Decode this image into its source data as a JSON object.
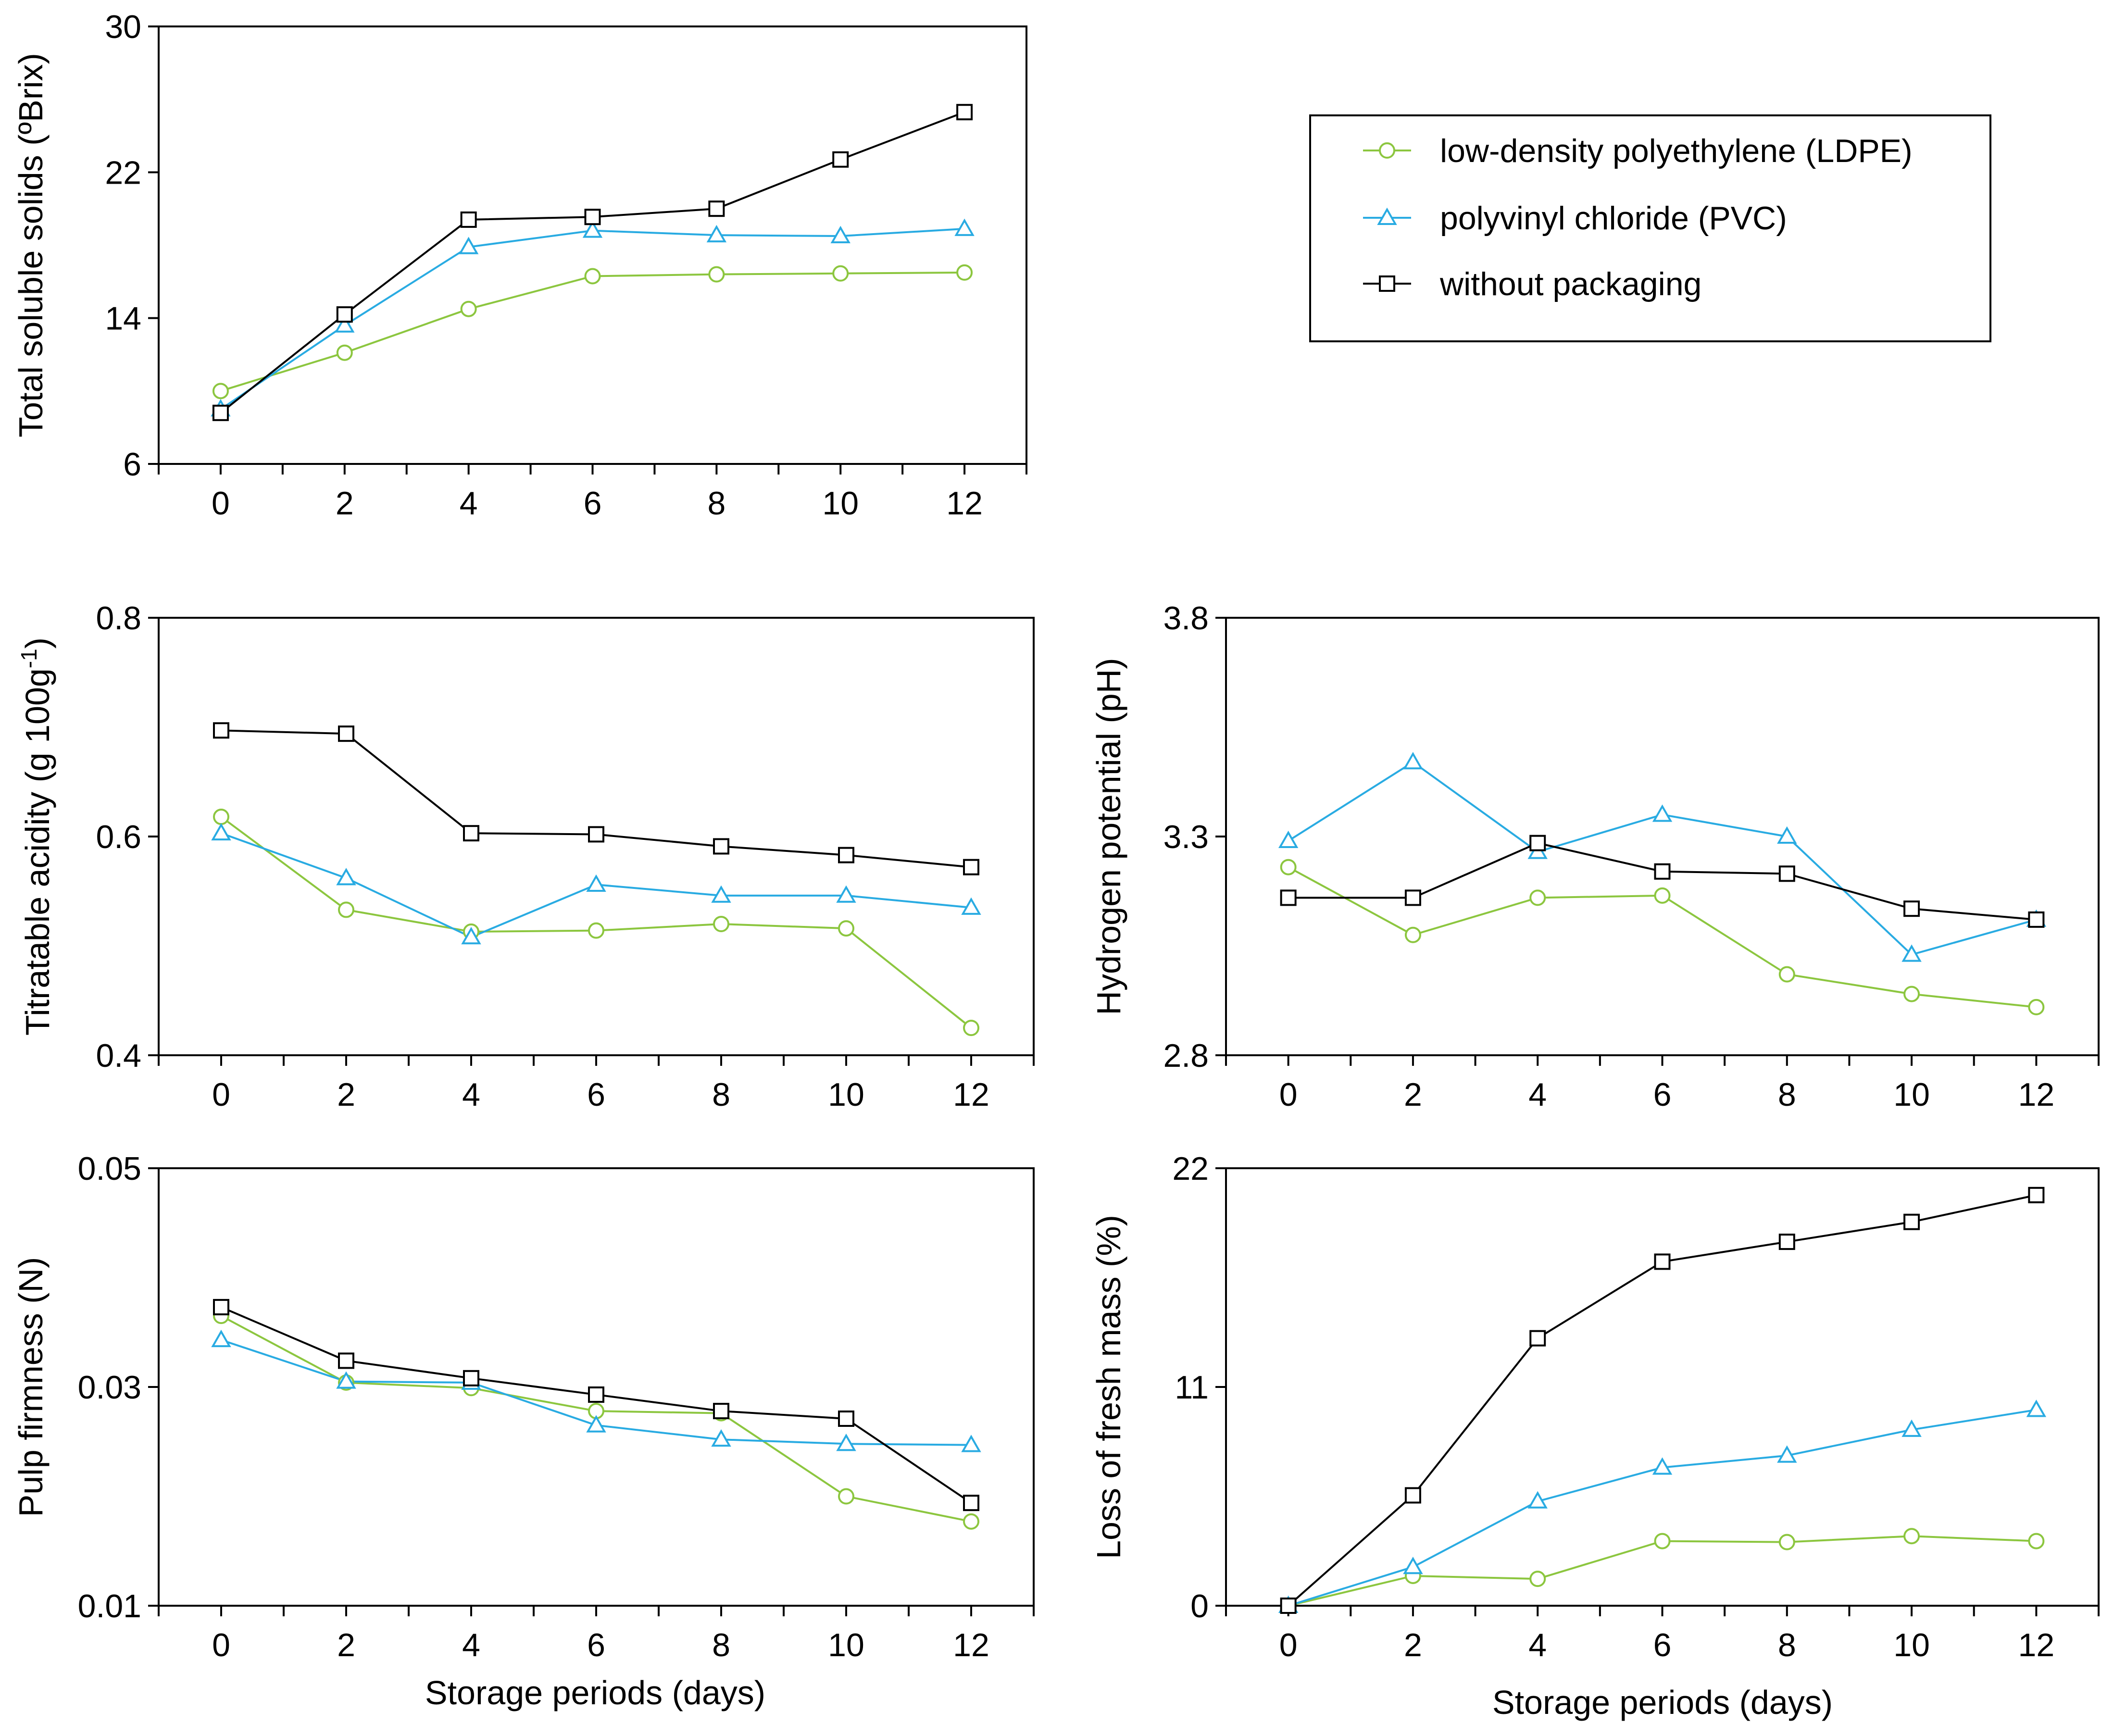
{
  "legend": {
    "entries": [
      {
        "label": "low-density polyethylene (LDPE)",
        "color": "#8cc63f",
        "marker": "circle"
      },
      {
        "label": "polyvinyl chloride (PVC)",
        "color": "#29abe2",
        "marker": "triangle"
      },
      {
        "label": "without packaging",
        "color": "#000000",
        "marker": "square"
      }
    ]
  },
  "chart_data": [
    {
      "type": "line",
      "id": "tss",
      "title": "",
      "xlabel": "",
      "ylabel": "Total soluble solids (ºBrix)",
      "x": [
        0,
        2,
        4,
        6,
        8,
        10,
        12
      ],
      "xticks": [
        "0",
        "2",
        "4",
        "6",
        "8",
        "10",
        "12"
      ],
      "ylim": [
        6,
        30
      ],
      "yticks": [
        "6",
        "14",
        "22",
        "30"
      ],
      "series": [
        {
          "name": "low-density polyethylene (LDPE)",
          "values": [
            10.0,
            12.1,
            14.5,
            16.3,
            16.4,
            16.45,
            16.5
          ]
        },
        {
          "name": "polyvinyl chloride (PVC)",
          "values": [
            9.0,
            13.6,
            17.9,
            18.8,
            18.55,
            18.5,
            18.9
          ]
        },
        {
          "name": "without packaging",
          "values": [
            8.8,
            14.2,
            19.4,
            19.55,
            20.0,
            22.7,
            25.3
          ]
        }
      ]
    },
    {
      "type": "line",
      "id": "ta",
      "title": "",
      "xlabel": "",
      "ylabel": "Titratable acidity (g 100g",
      "ylabel_sup": "-1",
      "ylabel_end": ")",
      "x": [
        0,
        2,
        4,
        6,
        8,
        10,
        12
      ],
      "xticks": [
        "0",
        "2",
        "4",
        "6",
        "8",
        "10",
        "12"
      ],
      "ylim": [
        0.4,
        0.8
      ],
      "yticks": [
        "0.4",
        "0.6",
        "0.8"
      ],
      "series": [
        {
          "name": "low-density polyethylene (LDPE)",
          "values": [
            0.618,
            0.533,
            0.513,
            0.514,
            0.52,
            0.516,
            0.425
          ]
        },
        {
          "name": "polyvinyl chloride (PVC)",
          "values": [
            0.603,
            0.562,
            0.508,
            0.556,
            0.546,
            0.546,
            0.535
          ]
        },
        {
          "name": "without packaging",
          "values": [
            0.697,
            0.694,
            0.603,
            0.602,
            0.591,
            0.583,
            0.572
          ]
        }
      ]
    },
    {
      "type": "line",
      "id": "ph",
      "title": "",
      "xlabel": "",
      "ylabel": "Hydrogen potential (pH)",
      "x": [
        0,
        2,
        4,
        6,
        8,
        10,
        12
      ],
      "xticks": [
        "0",
        "2",
        "4",
        "6",
        "8",
        "10",
        "12"
      ],
      "ylim": [
        2.8,
        3.8
      ],
      "yticks": [
        "2.8",
        "3.3",
        "3.8"
      ],
      "series": [
        {
          "name": "low-density polyethylene (LDPE)",
          "values": [
            3.23,
            3.075,
            3.16,
            3.165,
            2.985,
            2.94,
            2.91
          ]
        },
        {
          "name": "polyvinyl chloride (PVC)",
          "values": [
            3.29,
            3.47,
            3.265,
            3.35,
            3.3,
            3.03,
            3.11
          ]
        },
        {
          "name": "without packaging",
          "values": [
            3.16,
            3.16,
            3.285,
            3.22,
            3.215,
            3.135,
            3.11
          ]
        }
      ]
    },
    {
      "type": "line",
      "id": "firmness",
      "title": "",
      "xlabel": "Storage periods (days)",
      "ylabel": "Pulp firmness (N)",
      "x": [
        0,
        2,
        4,
        6,
        8,
        10,
        12
      ],
      "xticks": [
        "0",
        "2",
        "4",
        "6",
        "8",
        "10",
        "12"
      ],
      "ylim": [
        0.01,
        0.05
      ],
      "yticks": [
        "0.01",
        "0.03",
        "0.05"
      ],
      "series": [
        {
          "name": "low-density polyethylene (LDPE)",
          "values": [
            0.0365,
            0.0304,
            0.0299,
            0.0278,
            0.0276,
            0.02,
            0.0177
          ]
        },
        {
          "name": "polyvinyl chloride (PVC)",
          "values": [
            0.0343,
            0.0305,
            0.0304,
            0.0265,
            0.0252,
            0.0248,
            0.0247
          ]
        },
        {
          "name": "without packaging",
          "values": [
            0.0373,
            0.0324,
            0.0308,
            0.0293,
            0.0278,
            0.0271,
            0.0194
          ]
        }
      ]
    },
    {
      "type": "line",
      "id": "mass_loss",
      "title": "",
      "xlabel": "Storage periods (days)",
      "ylabel": "Loss of fresh mass (%)",
      "x": [
        0,
        2,
        4,
        6,
        8,
        10,
        12
      ],
      "xticks": [
        "0",
        "2",
        "4",
        "6",
        "8",
        "10",
        "12"
      ],
      "ylim": [
        0,
        22
      ],
      "yticks": [
        "0",
        "11",
        "22"
      ],
      "series": [
        {
          "name": "low-density polyethylene (LDPE)",
          "values": [
            0.0,
            1.5,
            1.35,
            3.25,
            3.2,
            3.5,
            3.25
          ]
        },
        {
          "name": "polyvinyl chloride (PVC)",
          "values": [
            0.0,
            1.95,
            5.25,
            6.95,
            7.55,
            8.85,
            9.85
          ]
        },
        {
          "name": "without packaging",
          "values": [
            0.0,
            5.55,
            13.45,
            17.3,
            18.3,
            19.3,
            20.65
          ]
        }
      ]
    }
  ]
}
